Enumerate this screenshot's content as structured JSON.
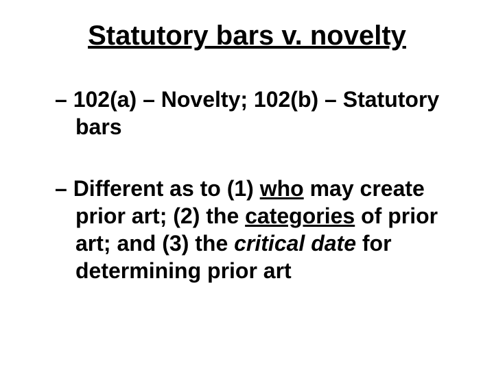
{
  "slide": {
    "title": "Statutory bars v. novelty",
    "bullets": [
      {
        "plain": "– 102(a) – Novelty; 102(b) – Statutory bars"
      },
      {
        "parts": {
          "p1": "– Different as to (1) ",
          "who": "who",
          "p2": " may create prior art; (2) the ",
          "categories": "categories",
          "p3": " of prior art; and (3) the ",
          "critical_date": "critical date",
          "p4": " for determining prior art"
        }
      }
    ],
    "styling": {
      "background_color": "#ffffff",
      "text_color": "#000000",
      "title_fontsize": 40,
      "body_fontsize": 32,
      "font_family": "Arial"
    }
  }
}
